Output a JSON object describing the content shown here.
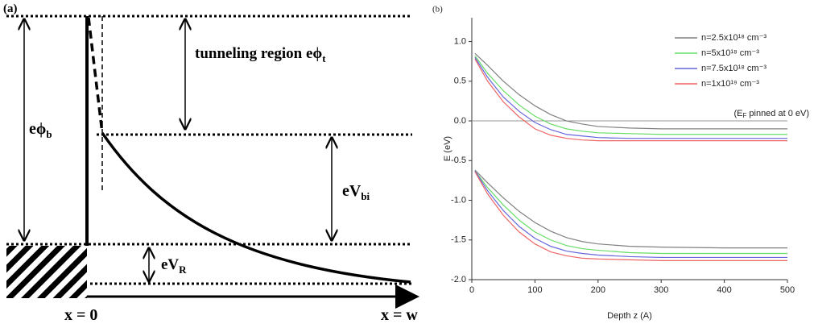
{
  "diagram": {
    "panel": "(a)",
    "tunneling": {
      "text": "tunneling region eϕ",
      "sub": "t"
    },
    "barrier": {
      "text": "eϕ",
      "sub": "b"
    },
    "built_in": {
      "text": "eV",
      "sub": "bi"
    },
    "reverse": {
      "text": "eV",
      "sub": "R"
    },
    "origin": "x = 0",
    "end": "x = w"
  },
  "chart_data": {
    "type": "line",
    "panel": "(b)",
    "ylabel": "E (eV)",
    "xlabel": "Depth z (A)",
    "annotation": [
      "(E",
      "F",
      " pinned at 0 eV)"
    ],
    "hline": 0,
    "xlim": [
      0,
      500
    ],
    "ylim": [
      -2.0,
      1.3
    ],
    "xticks": [
      0,
      100,
      200,
      300,
      400,
      500
    ],
    "yticks": [
      {
        "value": -2.0,
        "label": "-2.0"
      },
      {
        "value": -1.5,
        "label": "-1.5"
      },
      {
        "value": -1.0,
        "label": "-1.0"
      },
      {
        "value": -0.5,
        "label": "-0.5"
      },
      {
        "value": 0.0,
        "label": "0.0"
      },
      {
        "value": 0.5,
        "label": "0.5"
      },
      {
        "value": 1.0,
        "label": "1.0"
      }
    ],
    "legend": "upper-right",
    "x": [
      5,
      25,
      50,
      75,
      100,
      125,
      150,
      175,
      200,
      250,
      300,
      400,
      500
    ],
    "series": [
      {
        "name": "n=2.5x10¹⁸ cm⁻³",
        "color": "#808080",
        "conduction": [
          0.85,
          0.7,
          0.5,
          0.33,
          0.19,
          0.08,
          0.0,
          -0.04,
          -0.07,
          -0.09,
          -0.1,
          -0.1,
          -0.1
        ],
        "valence": [
          -0.62,
          -0.78,
          -0.97,
          -1.14,
          -1.28,
          -1.39,
          -1.47,
          -1.52,
          -1.55,
          -1.58,
          -1.59,
          -1.6,
          -1.6
        ]
      },
      {
        "name": "n=5x10¹⁸ cm⁻³",
        "color": "#66dd66",
        "conduction": [
          0.82,
          0.6,
          0.38,
          0.2,
          0.06,
          -0.04,
          -0.1,
          -0.13,
          -0.15,
          -0.16,
          -0.17,
          -0.17,
          -0.17
        ],
        "valence": [
          -0.63,
          -0.84,
          -1.06,
          -1.25,
          -1.4,
          -1.5,
          -1.57,
          -1.61,
          -1.63,
          -1.66,
          -1.67,
          -1.67,
          -1.67
        ]
      },
      {
        "name": "n=7.5x10¹⁸ cm⁻³",
        "color": "#6666dd",
        "conduction": [
          0.8,
          0.55,
          0.3,
          0.12,
          -0.02,
          -0.11,
          -0.17,
          -0.19,
          -0.21,
          -0.22,
          -0.22,
          -0.22,
          -0.22
        ],
        "valence": [
          -0.63,
          -0.88,
          -1.13,
          -1.33,
          -1.48,
          -1.58,
          -1.64,
          -1.67,
          -1.69,
          -1.71,
          -1.72,
          -1.72,
          -1.72
        ]
      },
      {
        "name": "n=1x10¹⁹ cm⁻³",
        "color": "#ee6666",
        "conduction": [
          0.78,
          0.5,
          0.24,
          0.05,
          -0.1,
          -0.18,
          -0.22,
          -0.24,
          -0.25,
          -0.25,
          -0.25,
          -0.25,
          -0.25
        ],
        "valence": [
          -0.64,
          -0.92,
          -1.19,
          -1.4,
          -1.55,
          -1.65,
          -1.7,
          -1.73,
          -1.74,
          -1.75,
          -1.76,
          -1.76,
          -1.76
        ]
      }
    ]
  }
}
